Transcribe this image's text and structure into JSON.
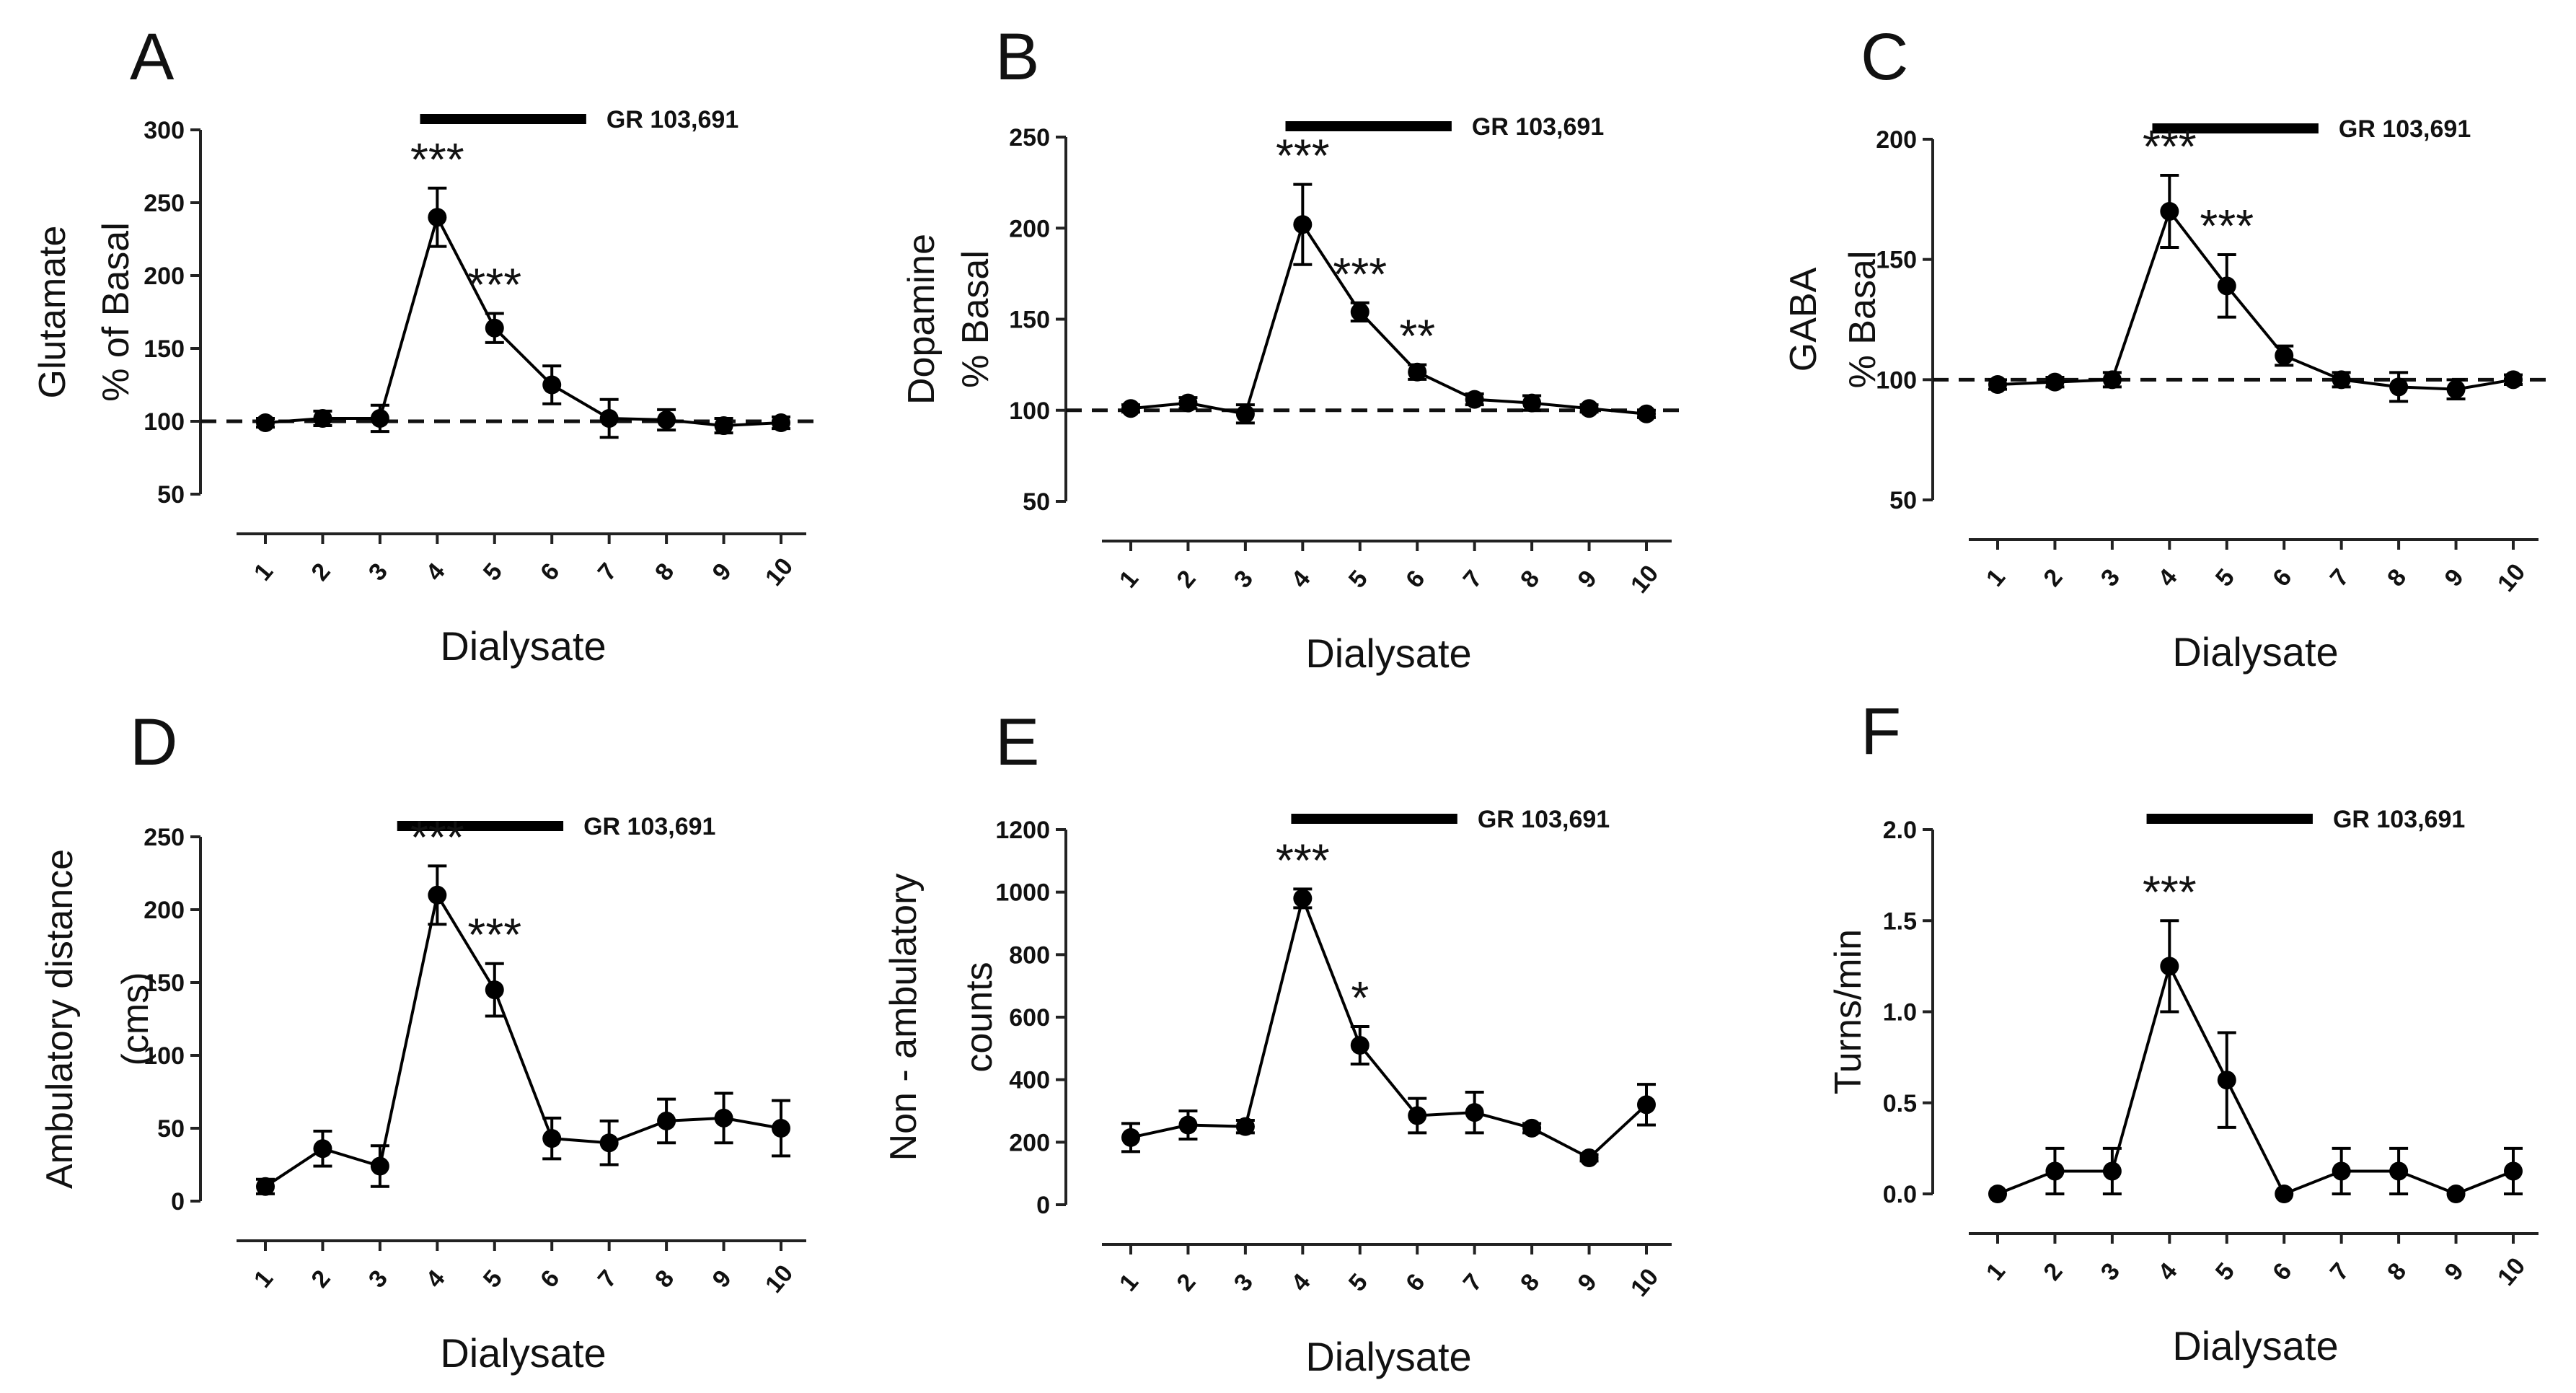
{
  "chart_data": [
    {
      "panel": "A",
      "type": "line",
      "xlabel": "Dialysate",
      "ylabel": [
        "Glutamate",
        "% of  Basal"
      ],
      "ylim": [
        50,
        300
      ],
      "yticks": [
        50,
        100,
        150,
        200,
        250,
        300
      ],
      "ytick_labels": [
        "50",
        "100",
        "150",
        "200",
        "250",
        "300"
      ],
      "categories": [
        "1",
        "2",
        "3",
        "4",
        "5",
        "6",
        "7",
        "8",
        "9",
        "10"
      ],
      "values": [
        99,
        102,
        102,
        240,
        164,
        125,
        102,
        101,
        97,
        99
      ],
      "errors": [
        3,
        5,
        9,
        20,
        10,
        13,
        13,
        7,
        5,
        4
      ],
      "significance": [
        {
          "x": 4,
          "label": "***"
        },
        {
          "x": 5,
          "label": "***"
        }
      ],
      "baseline": 100,
      "drug": {
        "label": "GR 103,691",
        "from": 3.7,
        "to": 6.6
      }
    },
    {
      "panel": "B",
      "type": "line",
      "xlabel": "Dialysate",
      "ylabel": [
        "Dopamine",
        "% Basal"
      ],
      "ylim": [
        50,
        250
      ],
      "yticks": [
        50,
        100,
        150,
        200,
        250
      ],
      "ytick_labels": [
        "50",
        "100",
        "150",
        "200",
        "250"
      ],
      "categories": [
        "1",
        "2",
        "3",
        "4",
        "5",
        "6",
        "7",
        "8",
        "9",
        "10"
      ],
      "values": [
        101,
        104,
        98,
        202,
        154,
        121,
        106,
        104,
        101,
        98
      ],
      "errors": [
        2,
        3,
        5,
        22,
        5,
        4,
        3,
        4,
        2,
        2
      ],
      "significance": [
        {
          "x": 4,
          "label": "***"
        },
        {
          "x": 5,
          "label": "***"
        },
        {
          "x": 6,
          "label": "**"
        }
      ],
      "baseline": 100,
      "drug": {
        "label": "GR 103,691",
        "from": 3.7,
        "to": 6.6
      }
    },
    {
      "panel": "C",
      "type": "line",
      "xlabel": "Dialysate",
      "ylabel": [
        "GABA",
        "% Basal"
      ],
      "ylim": [
        50,
        200
      ],
      "yticks": [
        50,
        100,
        150,
        200
      ],
      "ytick_labels": [
        "50",
        "100",
        "150",
        "200"
      ],
      "categories": [
        "1",
        "2",
        "3",
        "4",
        "5",
        "6",
        "7",
        "8",
        "9",
        "10"
      ],
      "values": [
        98,
        99,
        100,
        170,
        139,
        110,
        100,
        97,
        96,
        100
      ],
      "errors": [
        2,
        2,
        3,
        15,
        13,
        4,
        3,
        6,
        4,
        2
      ],
      "significance": [
        {
          "x": 4,
          "label": "***"
        },
        {
          "x": 5,
          "label": "***"
        }
      ],
      "baseline": 100,
      "drug": {
        "label": "GR 103,691",
        "from": 3.7,
        "to": 6.6
      }
    },
    {
      "panel": "D",
      "type": "line",
      "xlabel": "Dialysate",
      "ylabel": [
        "Ambulatory distance",
        "(cms)"
      ],
      "ylim": [
        0,
        250
      ],
      "yticks": [
        0,
        50,
        100,
        150,
        200,
        250
      ],
      "ytick_labels": [
        "0",
        "50",
        "100",
        "150",
        "200",
        "250"
      ],
      "categories": [
        "1",
        "2",
        "3",
        "4",
        "5",
        "6",
        "7",
        "8",
        "9",
        "10"
      ],
      "values": [
        10,
        36,
        24,
        210,
        145,
        43,
        40,
        55,
        57,
        50
      ],
      "errors": [
        5,
        12,
        14,
        20,
        18,
        14,
        15,
        15,
        17,
        19
      ],
      "significance": [
        {
          "x": 4,
          "label": "***"
        },
        {
          "x": 5,
          "label": "***"
        }
      ],
      "baseline": null,
      "drug": {
        "label": "GR 103,691",
        "from": 3.3,
        "to": 6.2
      }
    },
    {
      "panel": "E",
      "type": "line",
      "xlabel": "Dialysate",
      "ylabel": [
        "Non - ambulatory",
        "counts"
      ],
      "ylim": [
        0,
        1200
      ],
      "yticks": [
        0,
        200,
        400,
        600,
        800,
        1000,
        1200
      ],
      "ytick_labels": [
        "0",
        "200",
        "400",
        "600",
        "800",
        "1000",
        "1200"
      ],
      "categories": [
        "1",
        "2",
        "3",
        "4",
        "5",
        "6",
        "7",
        "8",
        "9",
        "10"
      ],
      "values": [
        215,
        255,
        250,
        980,
        510,
        285,
        295,
        245,
        150,
        320
      ],
      "errors": [
        45,
        45,
        20,
        30,
        60,
        55,
        65,
        15,
        10,
        65
      ],
      "significance": [
        {
          "x": 4,
          "label": "***"
        },
        {
          "x": 5,
          "label": "*"
        }
      ],
      "baseline": null,
      "drug": {
        "label": "GR 103,691",
        "from": 3.8,
        "to": 6.7
      }
    },
    {
      "panel": "F",
      "type": "line",
      "xlabel": "Dialysate",
      "ylabel": [
        "Turns/min"
      ],
      "ylim": [
        0,
        2
      ],
      "yticks": [
        0,
        0.5,
        1,
        1.5,
        2
      ],
      "ytick_labels": [
        "0.0",
        "0.5",
        "1.0",
        "1.5",
        "2.0"
      ],
      "categories": [
        "1",
        "2",
        "3",
        "4",
        "5",
        "6",
        "7",
        "8",
        "9",
        "10"
      ],
      "values": [
        0,
        0.125,
        0.125,
        1.25,
        0.625,
        0,
        0.125,
        0.125,
        0,
        0.125
      ],
      "errors": [
        0,
        0.125,
        0.125,
        0.25,
        0.26,
        0,
        0.125,
        0.125,
        0,
        0.125
      ],
      "significance": [
        {
          "x": 4,
          "label": "***"
        }
      ],
      "baseline": null,
      "drug": {
        "label": "GR 103,691",
        "from": 3.6,
        "to": 6.5
      }
    }
  ]
}
